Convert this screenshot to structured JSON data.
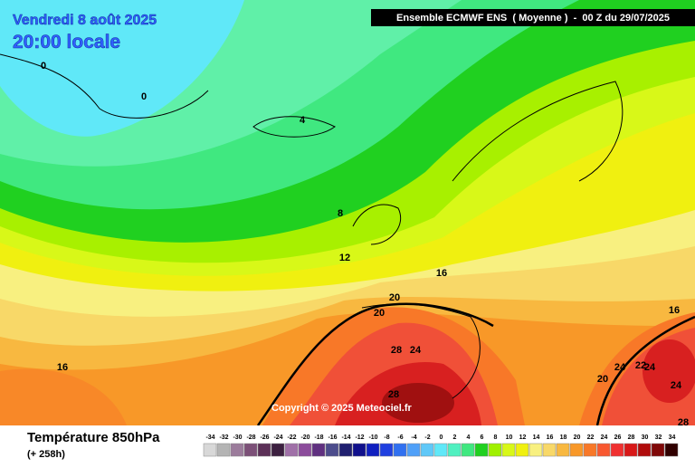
{
  "map": {
    "date": "Vendredi 8 août 2025",
    "time": "20:00 locale",
    "header": "Ensemble ECMWF ENS  ( Moyenne )  -  00 Z du 29/07/2025",
    "copyright": "Copyright © 2025 Meteociel.fr",
    "contour_labels": [
      0,
      0,
      4,
      8,
      12,
      16,
      20,
      20,
      28,
      24,
      28,
      16,
      16,
      24,
      22,
      24,
      20,
      24,
      28
    ]
  },
  "legend": {
    "title": "Température 850hPa",
    "subtitle": "(+ 258h)",
    "ticks": [
      -34,
      -32,
      -30,
      -28,
      -26,
      -24,
      -22,
      -20,
      -18,
      -16,
      -14,
      -12,
      -10,
      -8,
      -6,
      -4,
      -2,
      0,
      2,
      4,
      6,
      8,
      10,
      12,
      14,
      16,
      18,
      20,
      22,
      24,
      26,
      28,
      30,
      32,
      34
    ],
    "colors": [
      "#d8d8d8",
      "#b4b4b4",
      "#9c7c9c",
      "#7c5078",
      "#5c3058",
      "#3c2040",
      "#a070a8",
      "#8c4c9c",
      "#603080",
      "#4c4c8c",
      "#202070",
      "#10108c",
      "#1020c0",
      "#2040e0",
      "#3070f0",
      "#50a0f8",
      "#60c8f8",
      "#60e8f8",
      "#50f0c0",
      "#40e880",
      "#20d020",
      "#a0f000",
      "#d8f818",
      "#f0f010",
      "#f8f080",
      "#f8d868",
      "#f8b840",
      "#f89828",
      "#f87828",
      "#f85830",
      "#f03030",
      "#d81818",
      "#b00c0c",
      "#800808",
      "#300000"
    ]
  }
}
